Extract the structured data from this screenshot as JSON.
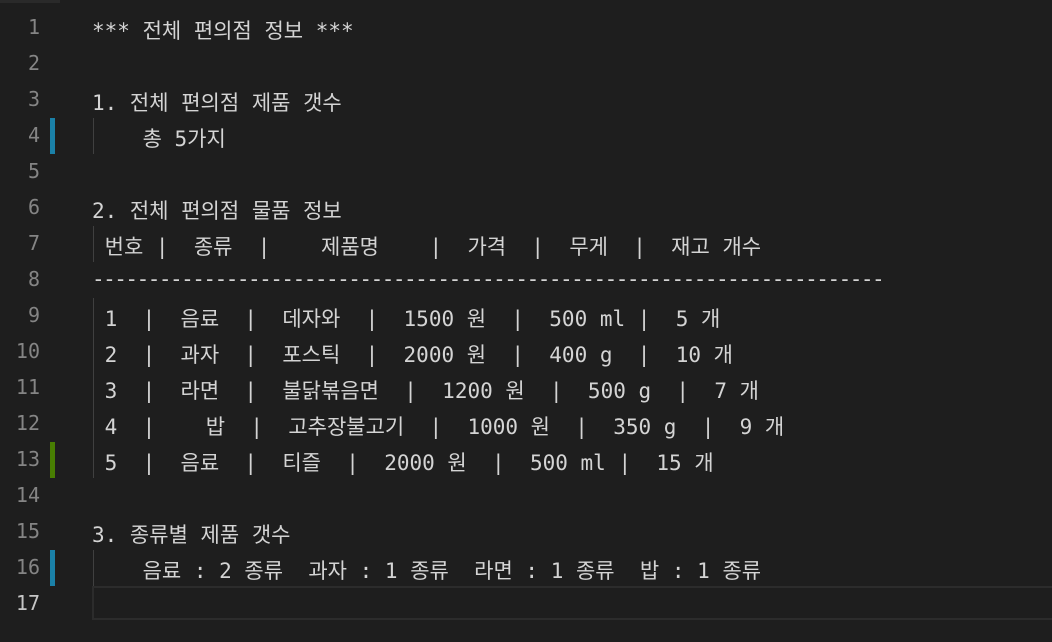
{
  "editor": {
    "lines": [
      {
        "number": "1",
        "text": "*** 전체 편의점 정보 ***"
      },
      {
        "number": "2",
        "text": ""
      },
      {
        "number": "3",
        "text": "1. 전체 편의점 제품 갯수"
      },
      {
        "number": "4",
        "text": "    총 5가지"
      },
      {
        "number": "5",
        "text": ""
      },
      {
        "number": "6",
        "text": "2. 전체 편의점 물품 정보"
      },
      {
        "number": "7",
        "text": " 번호 |  종류  |    제품명    |  가격  |  무게  |  재고 개수"
      },
      {
        "number": "8",
        "text": "-----------------------------------------------------------------------"
      },
      {
        "number": "9",
        "text": " 1  |  음료  |  데자와  |  1500 원  |  500 ml |  5 개"
      },
      {
        "number": "10",
        "text": " 2  |  과자  |  포스틱  |  2000 원  |  400 g  |  10 개"
      },
      {
        "number": "11",
        "text": " 3  |  라면  |  불닭볶음면  |  1200 원  |  500 g  |  7 개"
      },
      {
        "number": "12",
        "text": " 4  |    밥  |  고추장불고기  |  1000 원  |  350 g  |  9 개"
      },
      {
        "number": "13",
        "text": " 5  |  음료  |  티즐  |  2000 원  |  500 ml |  15 개"
      },
      {
        "number": "14",
        "text": ""
      },
      {
        "number": "15",
        "text": "3. 종류별 제품 갯수"
      },
      {
        "number": "16",
        "text": "    음료 : 2 종류  과자 : 1 종류  라면 : 1 종류  밥 : 1 종류"
      },
      {
        "number": "17",
        "text": ""
      }
    ],
    "active_line": "17",
    "gutter_colors": {
      "modified": "#1b81a8",
      "added": "#487e02"
    }
  }
}
